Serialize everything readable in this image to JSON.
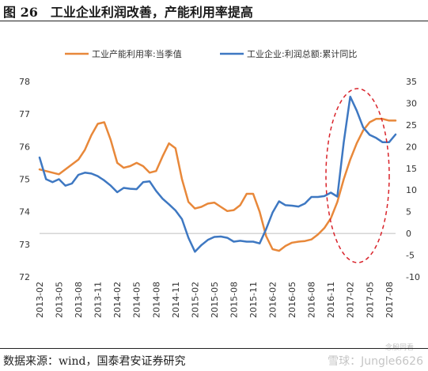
{
  "figure": {
    "title": "图 26　工业企业利润改善，产能利用率提高",
    "source": "数据来源：wind，国泰君安证券研究",
    "watermark_main": "雪球：Jungle6626",
    "watermark_small": "念殷同看"
  },
  "chart_data": {
    "type": "line",
    "x": [
      "2013-02",
      "2013-05",
      "2013-08",
      "2013-11",
      "2014-02",
      "2014-05",
      "2014-08",
      "2014-11",
      "2015-02",
      "2015-05",
      "2015-08",
      "2015-11",
      "2016-02",
      "2016-05",
      "2016-08",
      "2016-11",
      "2017-02",
      "2017-05",
      "2017-08"
    ],
    "ylim_left": [
      72,
      78
    ],
    "yticks_left": [
      72,
      73,
      74,
      75,
      76,
      77,
      78
    ],
    "ylim_right": [
      -10,
      35
    ],
    "yticks_right": [
      -10,
      -5,
      0,
      5,
      10,
      15,
      20,
      25,
      30,
      35
    ],
    "legend_position": "top",
    "grid": false,
    "annotation": "red dashed ellipse around 2016-11 to 2017-08",
    "series": [
      {
        "name": "工业产能利用率:当季值",
        "axis": "left",
        "color": "#E8883A",
        "points": [
          [
            "2013-02",
            75.3
          ],
          [
            "2013-05",
            75.15
          ],
          [
            "2013-08",
            75.6
          ],
          [
            "2013-09",
            75.9
          ],
          [
            "2013-10",
            76.35
          ],
          [
            "2013-11",
            76.7
          ],
          [
            "2013-12",
            76.75
          ],
          [
            "2014-01",
            76.2
          ],
          [
            "2014-02",
            75.5
          ],
          [
            "2014-03",
            75.35
          ],
          [
            "2014-04",
            75.4
          ],
          [
            "2014-05",
            75.5
          ],
          [
            "2014-06",
            75.4
          ],
          [
            "2014-07",
            75.2
          ],
          [
            "2014-08",
            75.25
          ],
          [
            "2014-09",
            75.7
          ],
          [
            "2014-10",
            76.1
          ],
          [
            "2014-11",
            75.95
          ],
          [
            "2014-12",
            75.0
          ],
          [
            "2015-01",
            74.3
          ],
          [
            "2015-02",
            74.1
          ],
          [
            "2015-03",
            74.15
          ],
          [
            "2015-04",
            74.25
          ],
          [
            "2015-05",
            74.28
          ],
          [
            "2015-06",
            74.15
          ],
          [
            "2015-07",
            74.02
          ],
          [
            "2015-08",
            74.05
          ],
          [
            "2015-09",
            74.2
          ],
          [
            "2015-10",
            74.55
          ],
          [
            "2015-11",
            74.55
          ],
          [
            "2015-12",
            74.0
          ],
          [
            "2016-01",
            73.25
          ],
          [
            "2016-02",
            72.85
          ],
          [
            "2016-03",
            72.8
          ],
          [
            "2016-04",
            72.95
          ],
          [
            "2016-05",
            73.05
          ],
          [
            "2016-06",
            73.08
          ],
          [
            "2016-07",
            73.1
          ],
          [
            "2016-08",
            73.15
          ],
          [
            "2016-09",
            73.3
          ],
          [
            "2016-10",
            73.5
          ],
          [
            "2016-11",
            73.8
          ],
          [
            "2016-12",
            74.3
          ],
          [
            "2017-01",
            75.0
          ],
          [
            "2017-02",
            75.6
          ],
          [
            "2017-03",
            76.1
          ],
          [
            "2017-04",
            76.5
          ],
          [
            "2017-05",
            76.75
          ],
          [
            "2017-06",
            76.85
          ],
          [
            "2017-07",
            76.85
          ],
          [
            "2017-08",
            76.8
          ],
          [
            "2017-09",
            76.8
          ]
        ]
      },
      {
        "name": "工业企业:利润总额:累计同比",
        "axis": "right",
        "color": "#3E78C2",
        "points": [
          [
            "2013-02",
            17.5
          ],
          [
            "2013-03",
            12.5
          ],
          [
            "2013-04",
            11.8
          ],
          [
            "2013-05",
            12.5
          ],
          [
            "2013-06",
            11.0
          ],
          [
            "2013-07",
            11.5
          ],
          [
            "2013-08",
            13.5
          ],
          [
            "2013-09",
            14.0
          ],
          [
            "2013-10",
            13.8
          ],
          [
            "2013-11",
            13.2
          ],
          [
            "2013-12",
            12.2
          ],
          [
            "2014-01",
            11.0
          ],
          [
            "2014-02",
            9.5
          ],
          [
            "2014-03",
            10.5
          ],
          [
            "2014-04",
            10.3
          ],
          [
            "2014-05",
            10.2
          ],
          [
            "2014-06",
            11.8
          ],
          [
            "2014-07",
            12.0
          ],
          [
            "2014-08",
            9.8
          ],
          [
            "2014-09",
            8.0
          ],
          [
            "2014-10",
            6.7
          ],
          [
            "2014-11",
            5.3
          ],
          [
            "2014-12",
            3.3
          ],
          [
            "2015-01",
            -1.0
          ],
          [
            "2015-02",
            -4.2
          ],
          [
            "2015-03",
            -2.7
          ],
          [
            "2015-04",
            -1.5
          ],
          [
            "2015-05",
            -0.8
          ],
          [
            "2015-06",
            -0.7
          ],
          [
            "2015-07",
            -1.0
          ],
          [
            "2015-08",
            -1.9
          ],
          [
            "2015-09",
            -1.7
          ],
          [
            "2015-10",
            -1.9
          ],
          [
            "2015-11",
            -1.9
          ],
          [
            "2015-12",
            -2.3
          ],
          [
            "2016-01",
            1.0
          ],
          [
            "2016-02",
            4.8
          ],
          [
            "2016-03",
            7.4
          ],
          [
            "2016-04",
            6.5
          ],
          [
            "2016-05",
            6.4
          ],
          [
            "2016-06",
            6.2
          ],
          [
            "2016-07",
            6.9
          ],
          [
            "2016-08",
            8.4
          ],
          [
            "2016-09",
            8.4
          ],
          [
            "2016-10",
            8.6
          ],
          [
            "2016-11",
            9.4
          ],
          [
            "2016-12",
            8.5
          ],
          [
            "2017-01",
            21.0
          ],
          [
            "2017-02",
            31.5
          ],
          [
            "2017-03",
            28.3
          ],
          [
            "2017-04",
            24.4
          ],
          [
            "2017-05",
            22.7
          ],
          [
            "2017-06",
            22.0
          ],
          [
            "2017-07",
            21.0
          ],
          [
            "2017-08",
            21.0
          ],
          [
            "2017-09",
            22.8
          ]
        ]
      }
    ]
  }
}
